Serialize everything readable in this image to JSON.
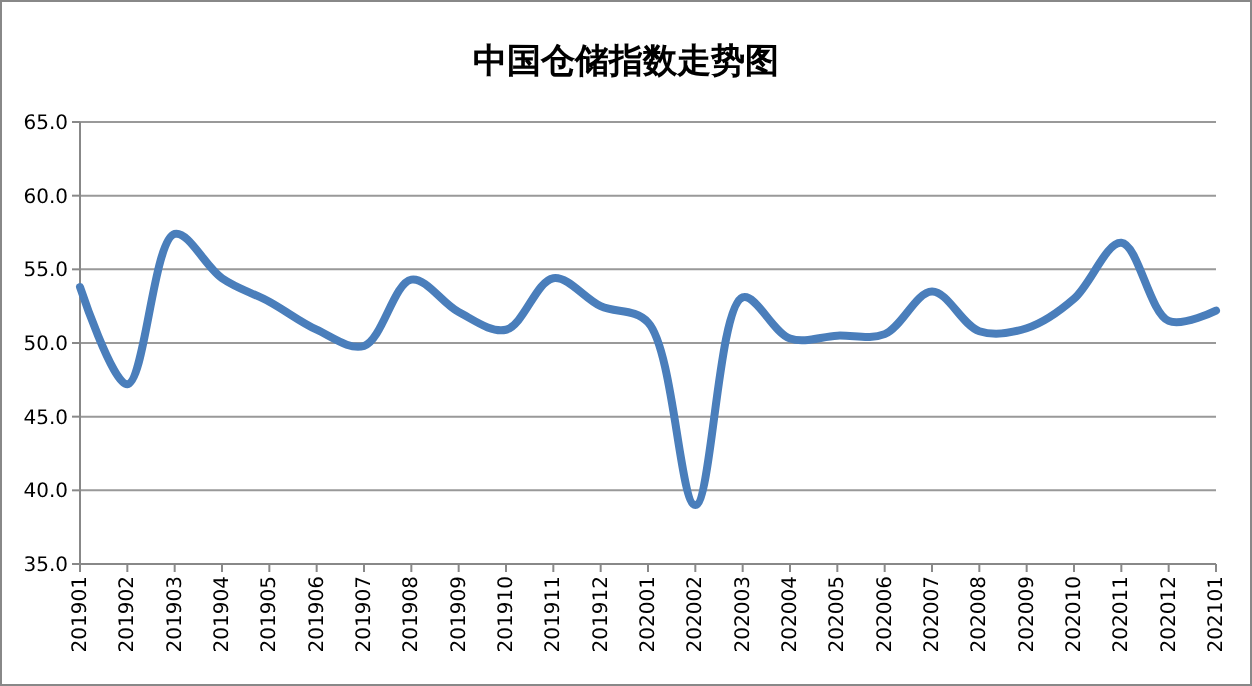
{
  "chart_data": {
    "type": "line",
    "title": "中国仓储指数走势图",
    "categories": [
      "201901",
      "201902",
      "201903",
      "201904",
      "201905",
      "201906",
      "201907",
      "201908",
      "201909",
      "201910",
      "201911",
      "201912",
      "202001",
      "202002",
      "202003",
      "202004",
      "202005",
      "202006",
      "202007",
      "202008",
      "202009",
      "202010",
      "202011",
      "202012",
      "202101"
    ],
    "series": [
      {
        "color": "#4a7ebb",
        "values": [
          53.8,
          47.2,
          57.4,
          54.4,
          52.8,
          50.9,
          49.8,
          54.3,
          52.1,
          50.9,
          54.4,
          52.5,
          51.4,
          39.0,
          53.1,
          50.3,
          50.5,
          50.6,
          53.5,
          50.8,
          51.0,
          53.0,
          56.8,
          51.5,
          52.2
        ]
      }
    ],
    "ylim": [
      35,
      65
    ],
    "yticks": [
      {
        "value": 35,
        "label": "35.0"
      },
      {
        "value": 40,
        "label": "40.0"
      },
      {
        "value": 45,
        "label": "45.0"
      },
      {
        "value": 50,
        "label": "50.0"
      },
      {
        "value": 55,
        "label": "55.0"
      },
      {
        "value": 60,
        "label": "60.0"
      },
      {
        "value": 65,
        "label": "65.0"
      }
    ],
    "grid": "y",
    "marker": "none",
    "line_style": "solid"
  }
}
